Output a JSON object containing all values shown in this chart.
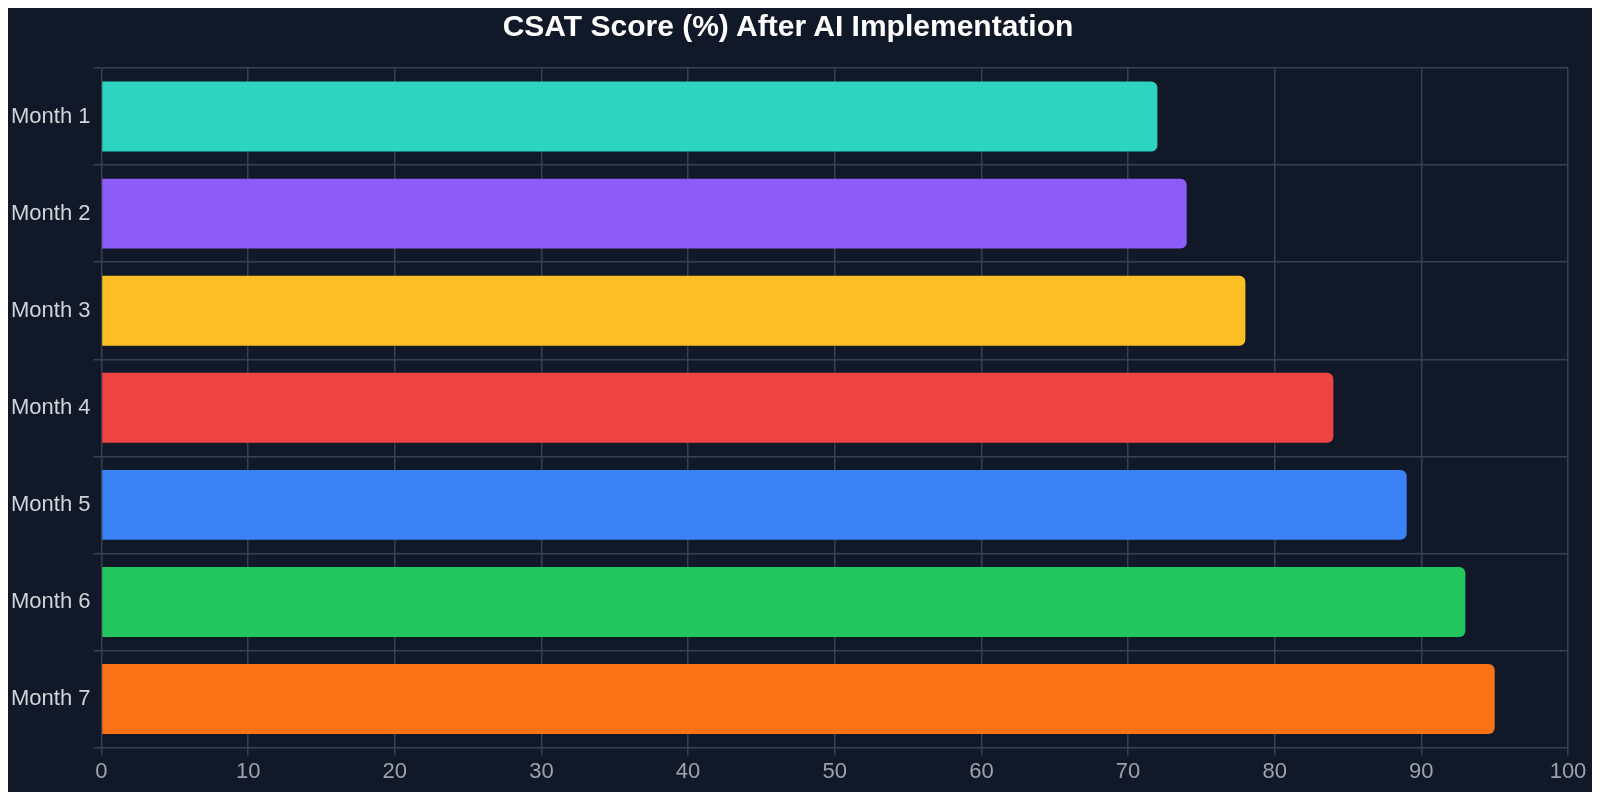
{
  "chart_data": {
    "type": "bar",
    "orientation": "horizontal",
    "title": "CSAT Score (%) After AI Implementation",
    "categories": [
      "Month 1",
      "Month 2",
      "Month 3",
      "Month 4",
      "Month 5",
      "Month 6",
      "Month 7"
    ],
    "values": [
      72,
      74,
      78,
      84,
      89,
      93,
      95
    ],
    "colors": [
      "#2dd4bf",
      "#8b5cf6",
      "#fbbf24",
      "#ef4444",
      "#3b82f6",
      "#22c55e",
      "#f97316"
    ],
    "xlim": [
      0,
      100
    ],
    "xticks": [
      0,
      10,
      20,
      30,
      40,
      50,
      60,
      70,
      80,
      90,
      100
    ],
    "grid": true,
    "legend": false
  }
}
